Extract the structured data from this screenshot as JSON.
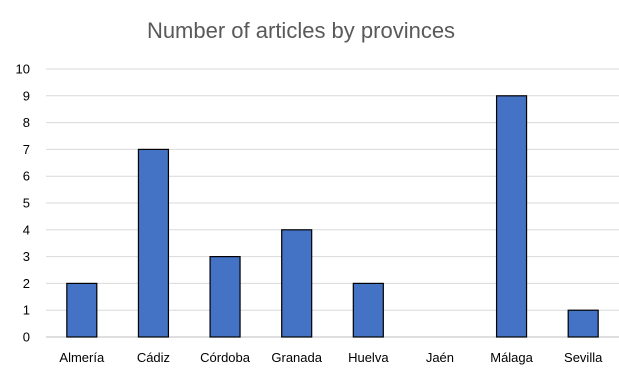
{
  "chart_data": {
    "type": "bar",
    "title": "Number of articles by provinces",
    "xlabel": "",
    "ylabel": "",
    "categories": [
      "Almería",
      "Cádiz",
      "Córdoba",
      "Granada",
      "Huelva",
      "Jaén",
      "Málaga",
      "Sevilla"
    ],
    "values": [
      2,
      7,
      3,
      4,
      2,
      0,
      9,
      1
    ],
    "ylim": [
      0,
      10
    ],
    "yticks": [
      "0",
      "1",
      "2",
      "3",
      "4",
      "5",
      "6",
      "7",
      "8",
      "9",
      "10"
    ],
    "grid": true,
    "legend": "none",
    "bar_color": "#4472c4"
  }
}
